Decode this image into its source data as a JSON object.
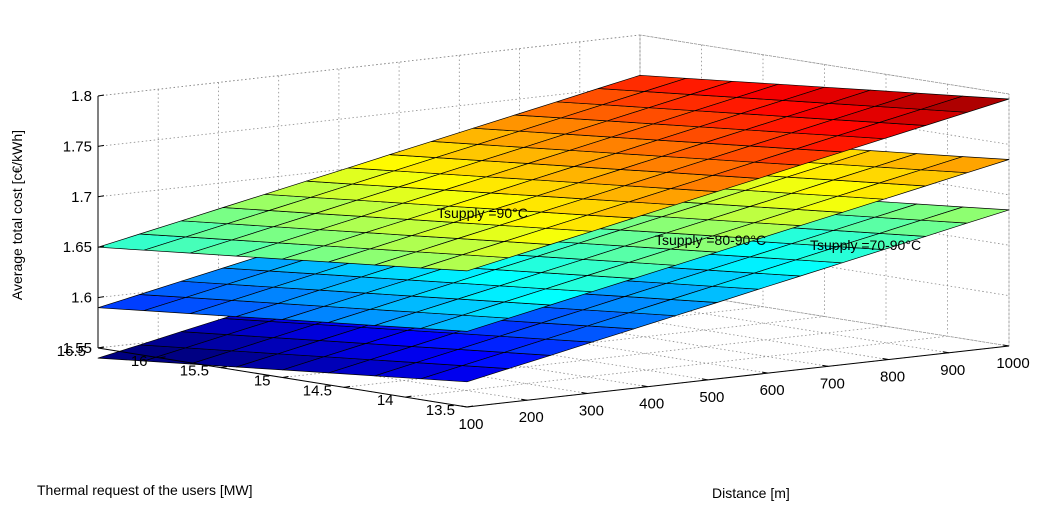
{
  "chart_data": {
    "type": "surface3d",
    "title": "",
    "zlabel": "Average total cost [c€/kWh]",
    "ylabel": "Thermal request of the users [MW]",
    "xlabel": "Distance [m]",
    "x_ticks": [
      "100",
      "200",
      "300",
      "400",
      "500",
      "600",
      "700",
      "800",
      "900",
      "1000"
    ],
    "y_ticks": [
      "13.5",
      "14",
      "14.5",
      "15",
      "15.5",
      "16",
      "16.5"
    ],
    "z_ticks": [
      "1.55",
      "1.6",
      "1.65",
      "1.7",
      "1.75",
      "1.8"
    ],
    "xlim": [
      100,
      1000
    ],
    "ylim": [
      13.5,
      16.5
    ],
    "zlim": [
      1.55,
      1.8
    ],
    "grid": true,
    "colormap": "jet",
    "color_range": [
      1.55,
      1.8
    ],
    "surfaces": [
      {
        "annotation": "Tsupply =90°C",
        "z_corners": {
          "x100_y13.5": 1.685,
          "x1000_y13.5": 1.795,
          "x100_y16.5": 1.65,
          "x1000_y16.5": 1.76
        }
      },
      {
        "annotation": "Tsupply =80-90°C",
        "z_corners": {
          "x100_y13.5": 1.625,
          "x1000_y13.5": 1.735,
          "x100_y16.5": 1.59,
          "x1000_y16.5": 1.7
        }
      },
      {
        "annotation": "Tsupply =70-90°C",
        "z_corners": {
          "x100_y13.5": 1.575,
          "x1000_y13.5": 1.685,
          "x100_y16.5": 1.54,
          "x1000_y16.5": 1.65
        }
      }
    ]
  }
}
